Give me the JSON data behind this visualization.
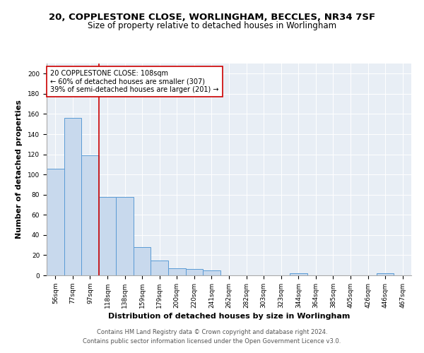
{
  "title_line1": "20, COPPLESTONE CLOSE, WORLINGHAM, BECCLES, NR34 7SF",
  "title_line2": "Size of property relative to detached houses in Worlingham",
  "xlabel": "Distribution of detached houses by size in Worlingham",
  "ylabel": "Number of detached properties",
  "bar_labels": [
    "56sqm",
    "77sqm",
    "97sqm",
    "118sqm",
    "138sqm",
    "159sqm",
    "179sqm",
    "200sqm",
    "220sqm",
    "241sqm",
    "262sqm",
    "282sqm",
    "303sqm",
    "323sqm",
    "344sqm",
    "364sqm",
    "385sqm",
    "405sqm",
    "426sqm",
    "446sqm",
    "467sqm"
  ],
  "bar_values": [
    106,
    156,
    119,
    78,
    78,
    28,
    15,
    7,
    6,
    5,
    0,
    0,
    0,
    0,
    2,
    0,
    0,
    0,
    0,
    2,
    0
  ],
  "bar_color": "#c8d9ed",
  "bar_edge_color": "#5b9bd5",
  "vline_color": "#cc0000",
  "annotation_text": "20 COPPLESTONE CLOSE: 108sqm\n← 60% of detached houses are smaller (307)\n39% of semi-detached houses are larger (201) →",
  "annotation_box_color": "#ffffff",
  "annotation_box_edge": "#cc0000",
  "ylim": [
    0,
    210
  ],
  "yticks": [
    0,
    20,
    40,
    60,
    80,
    100,
    120,
    140,
    160,
    180,
    200
  ],
  "background_color": "#e8eef5",
  "footer_line1": "Contains HM Land Registry data © Crown copyright and database right 2024.",
  "footer_line2": "Contains public sector information licensed under the Open Government Licence v3.0.",
  "title_fontsize": 9.5,
  "subtitle_fontsize": 8.5,
  "axis_label_fontsize": 8,
  "tick_fontsize": 6.5,
  "annotation_fontsize": 7,
  "footer_fontsize": 6
}
